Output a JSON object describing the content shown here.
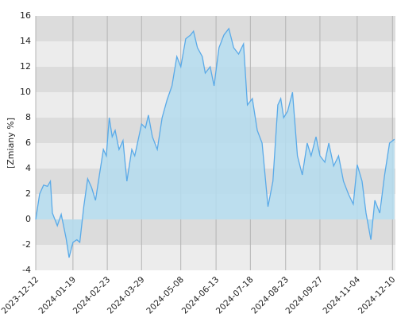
{
  "chart_data": {
    "type": "area",
    "y_label": "[Zmiany %]",
    "x": [
      "2023-12-12",
      "2023-12-16",
      "2023-12-20",
      "2023-12-24",
      "2023-12-27",
      "2023-12-29",
      "2024-01-03",
      "2024-01-07",
      "2024-01-12",
      "2024-01-15",
      "2024-01-19",
      "2024-01-23",
      "2024-01-26",
      "2024-01-30",
      "2024-02-03",
      "2024-02-07",
      "2024-02-11",
      "2024-02-15",
      "2024-02-19",
      "2024-02-22",
      "2024-02-25",
      "2024-02-28",
      "2024-03-02",
      "2024-03-06",
      "2024-03-10",
      "2024-03-14",
      "2024-03-19",
      "2024-03-22",
      "2024-03-29",
      "2024-04-02",
      "2024-04-05",
      "2024-04-09",
      "2024-04-14",
      "2024-04-19",
      "2024-04-24",
      "2024-04-29",
      "2024-05-04",
      "2024-05-08",
      "2024-05-13",
      "2024-05-18",
      "2024-05-21",
      "2024-05-25",
      "2024-05-30",
      "2024-06-02",
      "2024-06-07",
      "2024-06-11",
      "2024-06-16",
      "2024-06-21",
      "2024-06-26",
      "2024-07-01",
      "2024-07-06",
      "2024-07-11",
      "2024-07-15",
      "2024-07-20",
      "2024-07-25",
      "2024-07-30",
      "2024-08-05",
      "2024-08-10",
      "2024-08-15",
      "2024-08-18",
      "2024-08-21",
      "2024-08-25",
      "2024-08-30",
      "2024-09-04",
      "2024-09-09",
      "2024-09-14",
      "2024-09-18",
      "2024-09-23",
      "2024-09-27",
      "2024-10-02",
      "2024-10-06",
      "2024-10-11",
      "2024-10-16",
      "2024-10-21",
      "2024-10-26",
      "2024-10-31",
      "2024-11-04",
      "2024-11-09",
      "2024-11-13",
      "2024-11-18",
      "2024-11-22",
      "2024-11-27",
      "2024-12-02",
      "2024-12-07",
      "2024-12-12"
    ],
    "values": [
      0,
      2,
      2.7,
      2.6,
      3,
      0.5,
      -0.5,
      0.4,
      -1.5,
      -3,
      -1.8,
      -1.6,
      -1.8,
      1,
      3.2,
      2.5,
      1.5,
      3.5,
      5.5,
      5,
      8,
      6.5,
      7,
      5.5,
      6.2,
      3,
      5.5,
      5,
      7.5,
      7.2,
      8.2,
      6.5,
      5.5,
      8,
      9.4,
      10.5,
      12.8,
      12,
      14.2,
      14.5,
      14.8,
      13.5,
      12.8,
      11.5,
      12,
      10.5,
      13.5,
      14.5,
      15,
      13.5,
      13,
      13.8,
      9,
      9.5,
      7,
      6,
      1,
      3,
      9,
      9.5,
      8,
      8.5,
      10,
      5,
      3.5,
      6,
      5,
      6.5,
      5,
      4.5,
      6,
      4.2,
      5,
      3,
      2,
      1.2,
      4.3,
      3,
      0.5,
      -1.6,
      1.5,
      0.5,
      3.5,
      6,
      6.3
    ],
    "color": "#5aaae8",
    "fill": "#b4dcee",
    "xlim": [
      "2023-12-12",
      "2024-12-13"
    ],
    "xticks": [
      "2023-12-12",
      "2024-01-19",
      "2024-02-23",
      "2024-03-29",
      "2024-05-08",
      "2024-06-13",
      "2024-07-18",
      "2024-08-23",
      "2024-09-27",
      "2024-11-04",
      "2024-12-10"
    ],
    "ylim": [
      -4,
      16
    ],
    "yticks": [
      -4,
      -2,
      0,
      2,
      4,
      6,
      8,
      10,
      12,
      14,
      16
    ],
    "grid": true
  }
}
